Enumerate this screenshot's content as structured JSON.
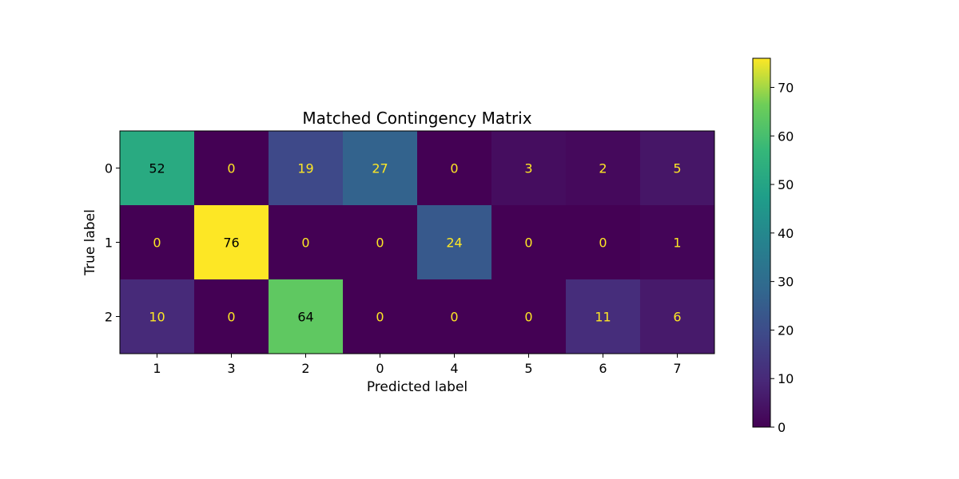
{
  "chart_data": {
    "type": "heatmap",
    "title": "Matched Contingency Matrix",
    "xlabel": "Predicted label",
    "ylabel": "True label",
    "x_categories": [
      "1",
      "3",
      "2",
      "0",
      "4",
      "5",
      "6",
      "7"
    ],
    "y_categories": [
      "0",
      "1",
      "2"
    ],
    "values": [
      [
        52,
        0,
        19,
        27,
        0,
        3,
        2,
        5
      ],
      [
        0,
        76,
        0,
        0,
        24,
        0,
        0,
        1
      ],
      [
        10,
        0,
        64,
        0,
        0,
        0,
        11,
        6
      ]
    ],
    "colormap": "viridis",
    "vmin": 0,
    "vmax": 76,
    "colorbar_ticks": [
      "0",
      "10",
      "20",
      "30",
      "40",
      "50",
      "60",
      "70"
    ],
    "grid": false
  }
}
